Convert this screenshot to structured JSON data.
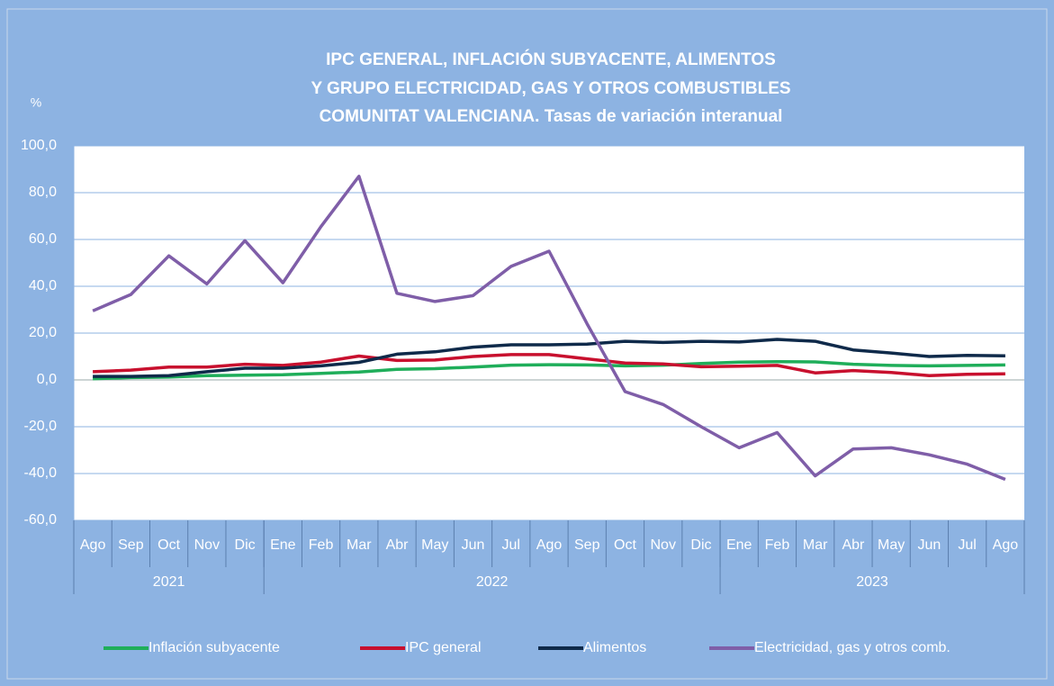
{
  "chart_data": {
    "type": "line",
    "title": [
      "IPC GENERAL, INFLACIÓN SUBYACENTE, ALIMENTOS",
      "Y GRUPO ELECTRICIDAD, GAS Y OTROS COMBUSTIBLES",
      "COMUNITAT VALENCIANA. Tasas de variación interanual"
    ],
    "y_label": "%",
    "categories": [
      "Ago",
      "Sep",
      "Oct",
      "Nov",
      "Dic",
      "Ene",
      "Feb",
      "Mar",
      "Abr",
      "May",
      "Jun",
      "Jul",
      "Ago",
      "Sep",
      "Oct",
      "Nov",
      "Dic",
      "Ene",
      "Feb",
      "Mar",
      "Abr",
      "May",
      "Jun",
      "Jul",
      "Ago"
    ],
    "category_groups": [
      "2021",
      "2021",
      "2021",
      "2021",
      "2021",
      "2022",
      "2022",
      "2022",
      "2022",
      "2022",
      "2022",
      "2022",
      "2022",
      "2022",
      "2022",
      "2022",
      "2022",
      "2023",
      "2023",
      "2023",
      "2023",
      "2023",
      "2023",
      "2023",
      "2023"
    ],
    "series": [
      {
        "name": "Inflación subyacente",
        "color": "#1fae5a",
        "values": [
          0.5,
          1,
          1.2,
          1.8,
          2,
          2.2,
          2.8,
          3.4,
          4.5,
          4.8,
          5.5,
          6.3,
          6.5,
          6.4,
          6,
          6.3,
          7,
          7.6,
          7.8,
          7.7,
          6.7,
          6.2,
          6,
          6.2,
          6.4
        ]
      },
      {
        "name": "IPC general",
        "color": "#c8102e",
        "values": [
          3.5,
          4.2,
          5.5,
          5.5,
          6.7,
          6.2,
          7.6,
          10.2,
          8.3,
          8.5,
          10,
          10.8,
          10.8,
          9,
          7.2,
          6.8,
          5.6,
          5.9,
          6.2,
          3,
          4,
          3.2,
          1.8,
          2.4,
          2.6
        ]
      },
      {
        "name": "Alimentos",
        "color": "#0f2a4a",
        "values": [
          1.5,
          1.5,
          1.8,
          3.5,
          5,
          5,
          6,
          7.5,
          11,
          12,
          14,
          15,
          15,
          15.3,
          16.5,
          16,
          16.5,
          16.2,
          17.3,
          16.5,
          12.8,
          11.5,
          10,
          10.5,
          10.3
        ]
      },
      {
        "name": "Electricidad, gas y otros comb.",
        "color": "#7f5ea8",
        "values": [
          29.5,
          36.5,
          53,
          41,
          59.5,
          41.5,
          65.5,
          87,
          37,
          33.5,
          36,
          48.5,
          55,
          24,
          -5,
          -10.5,
          -20,
          -29,
          -22.5,
          -41,
          -29.5,
          -29,
          -32,
          -36,
          -42.5
        ]
      }
    ],
    "ylim": [
      -60,
      100
    ],
    "yticks": [
      {
        "value": -60,
        "label": "-60,0"
      },
      {
        "value": -40,
        "label": "-40,0"
      },
      {
        "value": -20,
        "label": "-20,0"
      },
      {
        "value": 0,
        "label": "0,0"
      },
      {
        "value": 20,
        "label": "20,0"
      },
      {
        "value": 40,
        "label": "40,0"
      },
      {
        "value": 60,
        "label": "60,0"
      },
      {
        "value": 80,
        "label": "80,0"
      },
      {
        "value": 100,
        "label": "100,0"
      }
    ],
    "grid": true
  }
}
